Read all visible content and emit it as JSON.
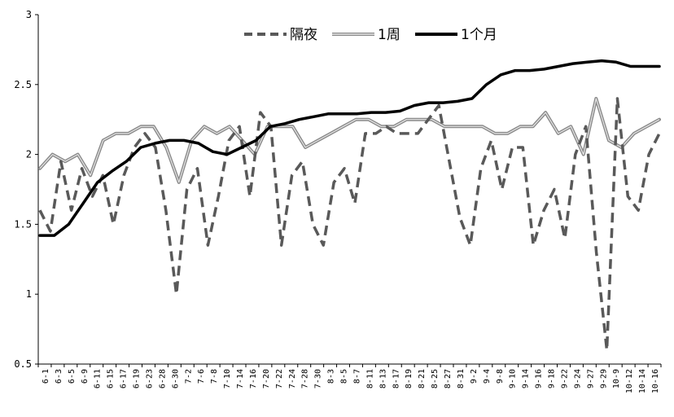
{
  "chart_data": {
    "type": "line",
    "y_ticks": [
      "3",
      "2.5",
      "2",
      "1.5",
      "1",
      "0.5"
    ],
    "ylim": [
      0.5,
      3
    ],
    "x_tick_labels": [
      "6-1",
      "6-3",
      "6-5",
      "6-9",
      "6-11",
      "6-15",
      "6-17",
      "6-19",
      "6-23",
      "6-28",
      "6-30",
      "7-2",
      "7-6",
      "7-8",
      "7-10",
      "7-14",
      "7-16",
      "7-20",
      "7-22",
      "7-24",
      "7-28",
      "7-30",
      "8-3",
      "8-5",
      "8-7",
      "8-11",
      "8-13",
      "8-17",
      "8-19",
      "8-21",
      "8-25",
      "8-27",
      "8-31",
      "9-2",
      "9-4",
      "9-8",
      "9-10",
      "9-14",
      "9-16",
      "9-18",
      "9-22",
      "9-24",
      "9-27",
      "9-29",
      "10-9",
      "10-12",
      "10-14",
      "10-16"
    ],
    "grid": false,
    "legend_position": "top-center",
    "series": [
      {
        "name": "隔夜",
        "style": "dashed",
        "color": "#595959",
        "values": [
          1.6,
          1.45,
          1.95,
          1.6,
          1.9,
          1.7,
          1.85,
          1.5,
          1.85,
          2.05,
          2.15,
          2.05,
          1.6,
          1.0,
          1.75,
          1.9,
          1.35,
          1.7,
          2.1,
          2.2,
          1.7,
          2.3,
          2.2,
          1.35,
          1.85,
          1.95,
          1.5,
          1.35,
          1.8,
          1.9,
          1.65,
          2.15,
          2.15,
          2.2,
          2.15,
          2.15,
          2.15,
          2.25,
          2.35,
          1.95,
          1.55,
          1.35,
          1.9,
          2.1,
          1.75,
          2.05,
          2.05,
          1.35,
          1.6,
          1.75,
          1.4,
          2.0,
          2.2,
          1.3,
          0.6,
          2.4,
          1.7,
          1.6,
          2.0,
          2.15
        ]
      },
      {
        "name": "1周",
        "style": "thin",
        "color": "#b0b0b0",
        "values": [
          1.9,
          2.0,
          1.95,
          2.0,
          1.85,
          2.1,
          2.15,
          2.15,
          2.2,
          2.2,
          2.05,
          1.8,
          2.1,
          2.2,
          2.15,
          2.2,
          2.1,
          2.0,
          2.2,
          2.2,
          2.2,
          2.05,
          2.1,
          2.15,
          2.2,
          2.25,
          2.25,
          2.2,
          2.2,
          2.25,
          2.25,
          2.25,
          2.2,
          2.2,
          2.2,
          2.2,
          2.15,
          2.15,
          2.2,
          2.2,
          2.3,
          2.15,
          2.2,
          2.0,
          2.4,
          2.1,
          2.05,
          2.15,
          2.2,
          2.25
        ]
      },
      {
        "name": "1个月",
        "style": "bold",
        "color": "#000000",
        "values": [
          1.42,
          1.42,
          1.5,
          1.65,
          1.8,
          1.88,
          1.95,
          2.05,
          2.08,
          2.1,
          2.1,
          2.08,
          2.02,
          2.0,
          2.05,
          2.1,
          2.2,
          2.22,
          2.25,
          2.27,
          2.29,
          2.29,
          2.29,
          2.3,
          2.3,
          2.31,
          2.35,
          2.37,
          2.37,
          2.38,
          2.4,
          2.5,
          2.57,
          2.6,
          2.6,
          2.61,
          2.63,
          2.65,
          2.66,
          2.67,
          2.66,
          2.63,
          2.63,
          2.63
        ]
      }
    ]
  }
}
